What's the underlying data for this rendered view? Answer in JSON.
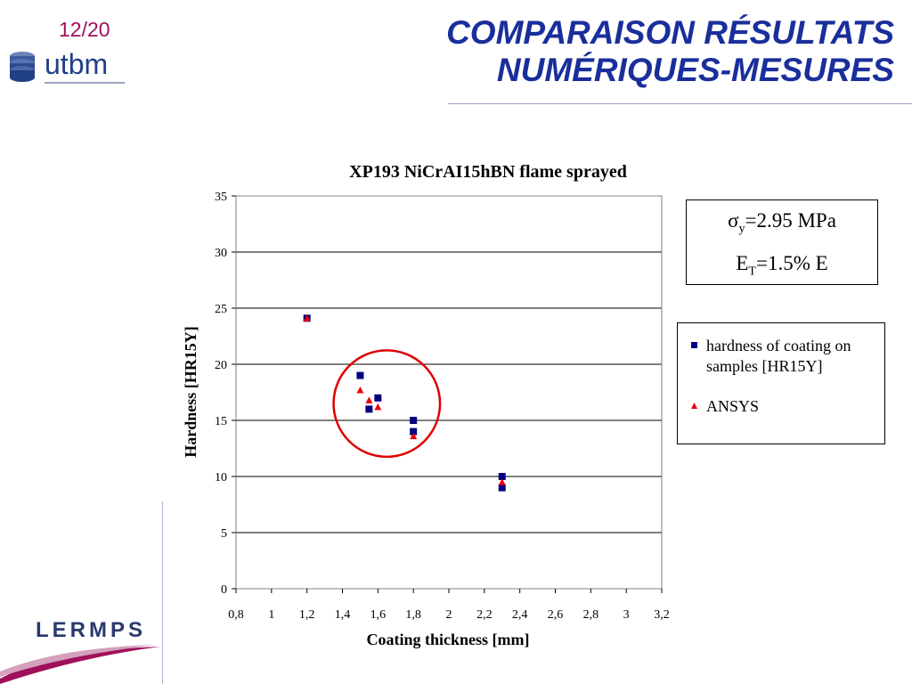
{
  "header": {
    "page_number": "12/20",
    "title_line1": "COMPARAISON RÉSULTATS",
    "title_line2": "NUMÉRIQUES-MESURES",
    "logo_top": "utbm",
    "logo_bottom": "LERMPS"
  },
  "colors": {
    "title": "#1a2f9c",
    "page_number": "#a0105a",
    "series_measured": "#000080",
    "series_ansys": "#e8000b",
    "highlight_circle": "#e00000"
  },
  "params": {
    "sigma_symbol": "σ",
    "sigma_sub": "y",
    "sigma_value": "=2.95 MPa",
    "et_symbol": "E",
    "et_sub": "T",
    "et_value": "=1.5% E"
  },
  "chart_data": {
    "type": "scatter",
    "title": "XP193 NiCrAI15hBN flame sprayed",
    "xlabel": "Coating thickness [mm]",
    "ylabel": "Hardness [HR15Y]",
    "xlim": [
      0.8,
      3.2
    ],
    "ylim": [
      0,
      35
    ],
    "x_ticks": [
      "0,8",
      "1",
      "1,2",
      "1,4",
      "1,6",
      "1,8",
      "2",
      "2,2",
      "2,4",
      "2,6",
      "2,8",
      "3",
      "3,2"
    ],
    "y_ticks": [
      "0",
      "5",
      "10",
      "15",
      "20",
      "25",
      "30",
      "35"
    ],
    "grid": "horizontal",
    "legend_position": "right",
    "series": [
      {
        "name": "hardness of coating on samples [HR15Y]",
        "marker": "square",
        "points": [
          [
            1.2,
            24.1
          ],
          [
            1.5,
            19.0
          ],
          [
            1.55,
            16.0
          ],
          [
            1.6,
            17.0
          ],
          [
            1.8,
            15.0
          ],
          [
            1.8,
            14.0
          ],
          [
            2.3,
            10.0
          ],
          [
            2.3,
            9.0
          ]
        ]
      },
      {
        "name": "ANSYS",
        "marker": "triangle",
        "points": [
          [
            1.2,
            24.1
          ],
          [
            1.5,
            17.7
          ],
          [
            1.55,
            16.8
          ],
          [
            1.6,
            16.2
          ],
          [
            1.8,
            13.6
          ],
          [
            2.3,
            9.5
          ]
        ]
      }
    ],
    "annotation": {
      "shape": "circle",
      "center": [
        1.65,
        16.5
      ],
      "radius_x_units": 0.3
    }
  }
}
